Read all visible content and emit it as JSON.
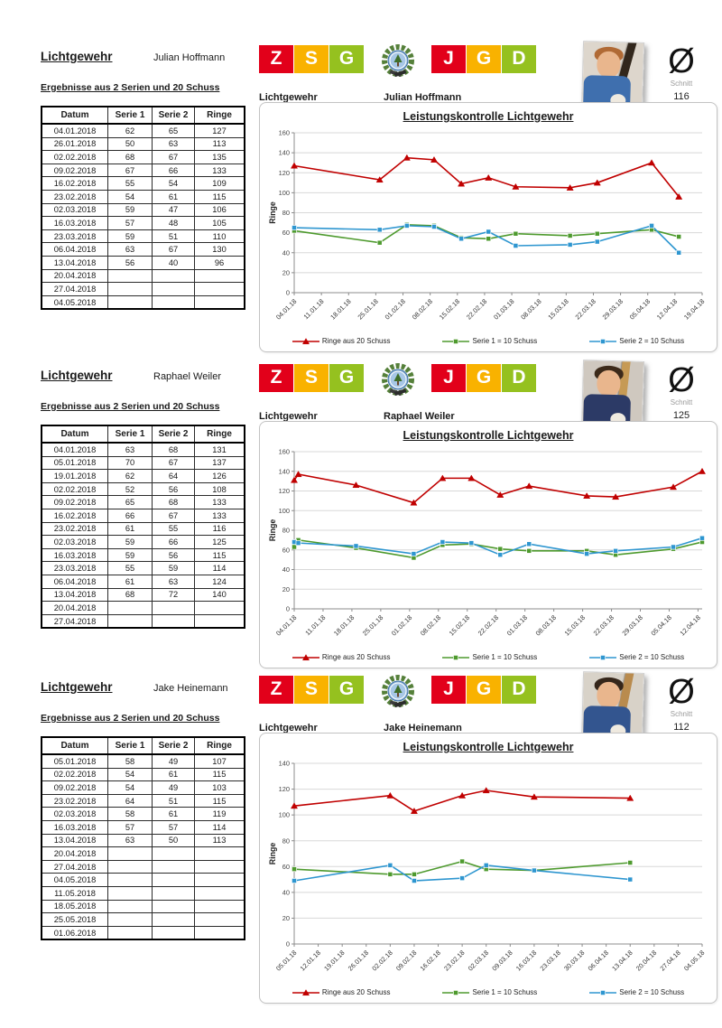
{
  "sections": [
    {
      "title": "Lichtgewehr",
      "name": "Julian Hoffmann",
      "subtitle": "Ergebnisse aus 2 Serien und 20 Schuss",
      "table": {
        "headers": [
          "Datum",
          "Serie 1",
          "Serie 2",
          "Ringe"
        ],
        "rows": [
          [
            "04.01.2018",
            "62",
            "65",
            "127"
          ],
          [
            "26.01.2018",
            "50",
            "63",
            "113"
          ],
          [
            "02.02.2018",
            "68",
            "67",
            "135"
          ],
          [
            "09.02.2018",
            "67",
            "66",
            "133"
          ],
          [
            "16.02.2018",
            "55",
            "54",
            "109"
          ],
          [
            "23.02.2018",
            "54",
            "61",
            "115"
          ],
          [
            "02.03.2018",
            "59",
            "47",
            "106"
          ],
          [
            "16.03.2018",
            "57",
            "48",
            "105"
          ],
          [
            "23.03.2018",
            "59",
            "51",
            "110"
          ],
          [
            "06.04.2018",
            "63",
            "67",
            "130"
          ],
          [
            "13.04.2018",
            "56",
            "40",
            "96"
          ],
          [
            "20.04.2018",
            "",
            "",
            ""
          ],
          [
            "27.04.2018",
            "",
            "",
            ""
          ],
          [
            "04.05.2018",
            "",
            "",
            ""
          ]
        ]
      },
      "banner": {
        "label_left": "Lichtgewehr",
        "label_right": "Julian Hoffmann",
        "letters": [
          {
            "char": "Z",
            "color": "#e2001a"
          },
          {
            "char": "S",
            "color": "#f9b200"
          },
          {
            "char": "G",
            "color": "#95c11f"
          },
          {
            "char": "J",
            "color": "#e2001a"
          },
          {
            "char": "G",
            "color": "#f9b200"
          },
          {
            "char": "D",
            "color": "#95c11f"
          }
        ]
      },
      "average": {
        "symbol": "Ø",
        "label": "Schnitt",
        "value": "116"
      },
      "photo": {
        "bg": "#ddd6cc",
        "hair": "#b06a35",
        "shirt": "#3f6fae",
        "rifle": "#32271c",
        "rifle_angle": 14
      }
    },
    {
      "title": "Lichtgewehr",
      "name": "Raphael Weiler",
      "subtitle": "Ergebnisse aus 2 Serien und 20 Schuss",
      "table": {
        "headers": [
          "Datum",
          "Serie 1",
          "Serie 2",
          "Ringe"
        ],
        "rows": [
          [
            "04.01.2018",
            "63",
            "68",
            "131"
          ],
          [
            "05.01.2018",
            "70",
            "67",
            "137"
          ],
          [
            "19.01.2018",
            "62",
            "64",
            "126"
          ],
          [
            "02.02.2018",
            "52",
            "56",
            "108"
          ],
          [
            "09.02.2018",
            "65",
            "68",
            "133"
          ],
          [
            "16.02.2018",
            "66",
            "67",
            "133"
          ],
          [
            "23.02.2018",
            "61",
            "55",
            "116"
          ],
          [
            "02.03.2018",
            "59",
            "66",
            "125"
          ],
          [
            "16.03.2018",
            "59",
            "56",
            "115"
          ],
          [
            "23.03.2018",
            "55",
            "59",
            "114"
          ],
          [
            "06.04.2018",
            "61",
            "63",
            "124"
          ],
          [
            "13.04.2018",
            "68",
            "72",
            "140"
          ],
          [
            "20.04.2018",
            "",
            "",
            ""
          ],
          [
            "27.04.2018",
            "",
            "",
            ""
          ]
        ]
      },
      "banner": {
        "label_left": "Lichtgewehr",
        "label_right": "Raphael Weiler",
        "letters": [
          {
            "char": "Z",
            "color": "#e2001a"
          },
          {
            "char": "S",
            "color": "#f9b200"
          },
          {
            "char": "G",
            "color": "#95c11f"
          },
          {
            "char": "J",
            "color": "#e2001a"
          },
          {
            "char": "G",
            "color": "#f9b200"
          },
          {
            "char": "D",
            "color": "#95c11f"
          }
        ]
      },
      "average": {
        "symbol": "Ø",
        "label": "Schnitt",
        "value": "125"
      },
      "photo": {
        "bg": "#cfc8bf",
        "hair": "#3c2a1a",
        "shirt": "#2c3a66",
        "rifle": "#c69a55",
        "rifle_angle": 5
      }
    },
    {
      "title": "Lichtgewehr",
      "name": "Jake Heinemann",
      "subtitle": "Ergebnisse aus 2 Serien und 20 Schuss",
      "table": {
        "headers": [
          "Datum",
          "Serie 1",
          "Serie 2",
          "Ringe"
        ],
        "rows": [
          [
            "05.01.2018",
            "58",
            "49",
            "107"
          ],
          [
            "02.02.2018",
            "54",
            "61",
            "115"
          ],
          [
            "09.02.2018",
            "54",
            "49",
            "103"
          ],
          [
            "23.02.2018",
            "64",
            "51",
            "115"
          ],
          [
            "02.03.2018",
            "58",
            "61",
            "119"
          ],
          [
            "16.03.2018",
            "57",
            "57",
            "114"
          ],
          [
            "13.04.2018",
            "63",
            "50",
            "113"
          ],
          [
            "20.04.2018",
            "",
            "",
            ""
          ],
          [
            "27.04.2018",
            "",
            "",
            ""
          ],
          [
            "04.05.2018",
            "",
            "",
            ""
          ],
          [
            "11.05.2018",
            "",
            "",
            ""
          ],
          [
            "18.05.2018",
            "",
            "",
            ""
          ],
          [
            "25.05.2018",
            "",
            "",
            ""
          ],
          [
            "01.06.2018",
            "",
            "",
            ""
          ]
        ]
      },
      "banner": {
        "label_left": "Lichtgewehr",
        "label_right": "Jake Heinemann",
        "letters": [
          {
            "char": "Z",
            "color": "#e2001a"
          },
          {
            "char": "S",
            "color": "#f9b200"
          },
          {
            "char": "G",
            "color": "#95c11f"
          },
          {
            "char": "J",
            "color": "#e2001a"
          },
          {
            "char": "G",
            "color": "#f9b200"
          },
          {
            "char": "D",
            "color": "#95c11f"
          }
        ]
      },
      "average": {
        "symbol": "Ø",
        "label": "Schnitt",
        "value": "112"
      },
      "photo": {
        "bg": "#d8d2c8",
        "hair": "#35261a",
        "shirt": "#33558f",
        "rifle": "#b98b4e",
        "rifle_angle": 10
      }
    }
  ],
  "chart_data": [
    {
      "type": "line",
      "title": "Leistungskontrolle Lichtgewehr",
      "ylabel": "Ringe",
      "ylim": [
        0,
        160
      ],
      "ytick_step": 20,
      "grid": true,
      "legend_position": "bottom",
      "x_axis_labels": [
        "04.01.18",
        "11.01.18",
        "18.01.18",
        "25.01.18",
        "01.02.18",
        "08.02.18",
        "15.02.18",
        "22.02.18",
        "01.03.18",
        "08.03.18",
        "15.03.18",
        "22.03.18",
        "29.03.18",
        "05.04.18",
        "12.04.18",
        "19.04.18"
      ],
      "x_dates": [
        "04.01.18",
        "26.01.18",
        "02.02.18",
        "09.02.18",
        "16.02.18",
        "23.02.18",
        "02.03.18",
        "16.03.18",
        "23.03.18",
        "06.04.18",
        "13.04.18"
      ],
      "series": [
        {
          "name": "Ringe aus 20 Schuss",
          "color": "#c00000",
          "marker": "triangle",
          "values": [
            127,
            113,
            135,
            133,
            109,
            115,
            106,
            105,
            110,
            130,
            96
          ]
        },
        {
          "name": "Serie 1 = 10 Schuss",
          "color": "#4e9a2e",
          "marker": "square",
          "values": [
            62,
            50,
            68,
            67,
            55,
            54,
            59,
            57,
            59,
            63,
            56
          ]
        },
        {
          "name": "Serie 2 = 10 Schuss",
          "color": "#2e96d0",
          "marker": "square",
          "values": [
            65,
            63,
            67,
            66,
            54,
            61,
            47,
            48,
            51,
            67,
            40
          ]
        }
      ]
    },
    {
      "type": "line",
      "title": "Leistungskontrolle Lichtgewehr",
      "ylabel": "Ringe",
      "ylim": [
        0,
        160
      ],
      "ytick_step": 20,
      "grid": true,
      "legend_position": "bottom",
      "x_axis_labels": [
        "04.01.18",
        "11.01.18",
        "18.01.18",
        "25.01.18",
        "01.02.18",
        "08.02.18",
        "15.02.18",
        "22.02.18",
        "01.03.18",
        "08.03.18",
        "15.03.18",
        "22.03.18",
        "29.03.18",
        "05.04.18",
        "12.04.18"
      ],
      "x_dates": [
        "04.01.18",
        "05.01.18",
        "19.01.18",
        "02.02.18",
        "09.02.18",
        "16.02.18",
        "23.02.18",
        "02.03.18",
        "16.03.18",
        "23.03.18",
        "06.04.18",
        "13.04.18"
      ],
      "series": [
        {
          "name": "Ringe aus 20 Schuss",
          "color": "#c00000",
          "marker": "triangle",
          "values": [
            131,
            137,
            126,
            108,
            133,
            133,
            116,
            125,
            115,
            114,
            124,
            140
          ]
        },
        {
          "name": "Serie 1 = 10 Schuss",
          "color": "#4e9a2e",
          "marker": "square",
          "values": [
            63,
            70,
            62,
            52,
            65,
            66,
            61,
            59,
            59,
            55,
            61,
            68
          ]
        },
        {
          "name": "Serie 2 = 10 Schuss",
          "color": "#2e96d0",
          "marker": "square",
          "values": [
            68,
            67,
            64,
            56,
            68,
            67,
            55,
            66,
            56,
            59,
            63,
            72
          ]
        }
      ]
    },
    {
      "type": "line",
      "title": "Leistungskontrolle Lichtgewehr",
      "ylabel": "Ringe",
      "ylim": [
        0,
        140
      ],
      "ytick_step": 20,
      "grid": true,
      "legend_position": "bottom",
      "x_axis_labels": [
        "05.01.18",
        "12.01.18",
        "19.01.18",
        "26.01.18",
        "02.02.18",
        "09.02.18",
        "16.02.18",
        "23.02.18",
        "02.03.18",
        "09.03.18",
        "16.03.18",
        "23.03.18",
        "30.03.18",
        "06.04.18",
        "13.04.18",
        "20.04.18",
        "27.04.18",
        "04.05.18"
      ],
      "x_dates": [
        "05.01.18",
        "02.02.18",
        "09.02.18",
        "23.02.18",
        "02.03.18",
        "16.03.18",
        "13.04.18"
      ],
      "series": [
        {
          "name": "Ringe aus 20 Schuss",
          "color": "#c00000",
          "marker": "triangle",
          "values": [
            107,
            115,
            103,
            115,
            119,
            114,
            113
          ]
        },
        {
          "name": "Serie 1 = 10 Schuss",
          "color": "#4e9a2e",
          "marker": "square",
          "values": [
            58,
            54,
            54,
            64,
            58,
            57,
            63
          ]
        },
        {
          "name": "Serie 2 = 10 Schuss",
          "color": "#2e96d0",
          "marker": "square",
          "values": [
            49,
            61,
            49,
            51,
            61,
            57,
            50
          ]
        }
      ]
    }
  ]
}
